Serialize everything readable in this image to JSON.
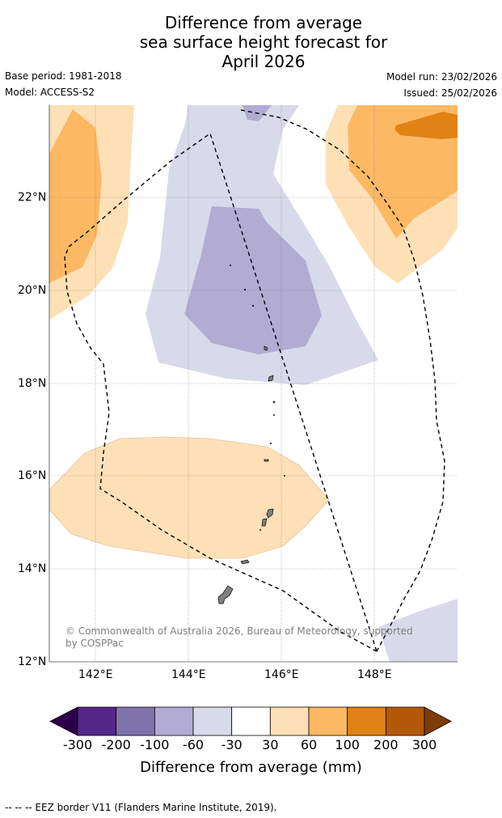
{
  "title": {
    "line1": "Difference from average",
    "line2": "sea surface height forecast for",
    "line3": "April 2026"
  },
  "meta": {
    "base_period": "Base period: 1981-2018",
    "model": "Model: ACCESS-S2",
    "model_run": "Model run: 23/02/2026",
    "issued": "Issued: 25/02/2026"
  },
  "map": {
    "lat_ticks": [
      "22°N",
      "20°N",
      "18°N",
      "16°N",
      "14°N",
      "12°N"
    ],
    "lon_ticks": [
      "142°E",
      "144°E",
      "146°E",
      "148°E"
    ],
    "credit": "© Commonwealth of Australia 2026, Bureau of Meteorology, supported by COSPPac"
  },
  "colorbar": {
    "labels": [
      "-300",
      "-200",
      "-100",
      "-60",
      "-30",
      "30",
      "60",
      "100",
      "200",
      "300"
    ],
    "colors": [
      "#2d004b",
      "#542788",
      "#8073ac",
      "#b2abd2",
      "#d8daeb",
      "#ffffff",
      "#fee0b6",
      "#fdb863",
      "#e08214",
      "#b35806",
      "#7f3b08"
    ],
    "title": "Difference from average (mm)"
  },
  "footer": "--  --  -- EEZ border V11 (Flanders Marine Institute, 2019)."
}
